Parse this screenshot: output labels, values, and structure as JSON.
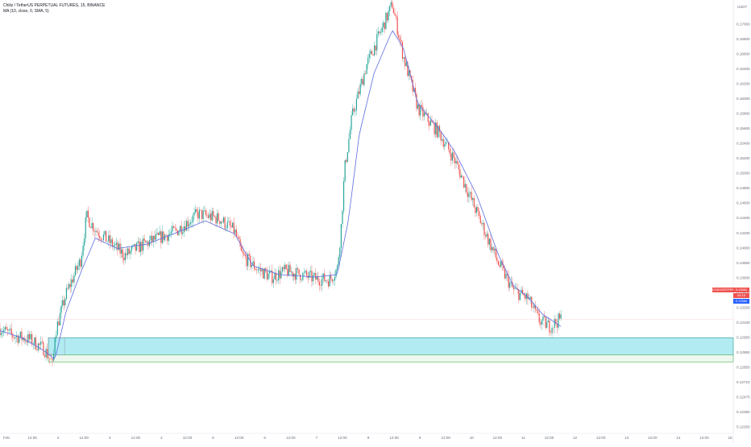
{
  "header": {
    "title": "Chiliz / TetherUS PERPETUAL FUTURES, 15, BINANCE",
    "indicator": "MA (10, close, 0, SMA, 5)"
  },
  "colors": {
    "up": "#26a69a",
    "down": "#ef5350",
    "ma": "#5b6be0",
    "zone_fill": "#b2ebf2",
    "zone_border": "#2a9d8f",
    "zone_lower_line": "#4caf50",
    "price_line": "#f7a6a6",
    "grid": "#f0f3fa"
  },
  "price_labels": {
    "symbol": "CHZUSDTPERP",
    "price": "0.13461",
    "countdown": "04:10",
    "ma_value": "0.13384"
  },
  "axis": {
    "unit": "USDT",
    "date_marker": "Feb"
  },
  "chart_data": {
    "type": "candlestick",
    "ylim": [
      0.1222,
      0.1715
    ],
    "y_ticks": [
      "0.17000",
      "0.16800",
      "0.16600",
      "0.16400",
      "0.16200",
      "0.16000",
      "0.15800",
      "0.15600",
      "0.15400",
      "0.15200",
      "0.15000",
      "0.14800",
      "0.14600",
      "0.14400",
      "0.14200",
      "0.14000",
      "0.13850",
      "0.13600",
      "0.13400",
      "0.13250",
      "0.13100",
      "0.12950",
      "0.12850",
      "0.12850",
      "0.12710",
      "0.12470",
      "0.12360",
      "0.12250"
    ],
    "x_ticks": [
      "Feb",
      "12:00",
      "2",
      "12:00",
      "3",
      "12:00",
      "4",
      "12:00",
      "5",
      "12:00",
      "6",
      "12:00",
      "7",
      "12:00",
      "8",
      "12:00",
      "9",
      "12:00",
      "10",
      "12:00",
      "11",
      "12:00",
      "12",
      "12:00",
      "13",
      "12:00",
      "14",
      "12:00",
      "15"
    ],
    "path_anchors": [
      [
        0,
        0.1336
      ],
      [
        0.015,
        0.1328
      ],
      [
        0.04,
        0.1323
      ],
      [
        0.06,
        0.1312
      ],
      [
        0.07,
        0.1298
      ],
      [
        0.072,
        0.129
      ],
      [
        0.075,
        0.133
      ],
      [
        0.09,
        0.1375
      ],
      [
        0.11,
        0.1415
      ],
      [
        0.118,
        0.1465
      ],
      [
        0.13,
        0.145
      ],
      [
        0.15,
        0.1435
      ],
      [
        0.17,
        0.142
      ],
      [
        0.19,
        0.143
      ],
      [
        0.21,
        0.1438
      ],
      [
        0.24,
        0.1448
      ],
      [
        0.27,
        0.1468
      ],
      [
        0.3,
        0.1462
      ],
      [
        0.32,
        0.1448
      ],
      [
        0.33,
        0.142
      ],
      [
        0.35,
        0.1405
      ],
      [
        0.37,
        0.1395
      ],
      [
        0.39,
        0.1402
      ],
      [
        0.41,
        0.1398
      ],
      [
        0.43,
        0.1393
      ],
      [
        0.45,
        0.1392
      ],
      [
        0.46,
        0.1405
      ],
      [
        0.465,
        0.145
      ],
      [
        0.47,
        0.152
      ],
      [
        0.48,
        0.158
      ],
      [
        0.5,
        0.164
      ],
      [
        0.52,
        0.168
      ],
      [
        0.535,
        0.171
      ],
      [
        0.55,
        0.165
      ],
      [
        0.57,
        0.159
      ],
      [
        0.6,
        0.156
      ],
      [
        0.62,
        0.153
      ],
      [
        0.65,
        0.147
      ],
      [
        0.68,
        0.141
      ],
      [
        0.7,
        0.138
      ],
      [
        0.72,
        0.137
      ],
      [
        0.735,
        0.1345
      ],
      [
        0.75,
        0.1338
      ],
      [
        0.765,
        0.1347
      ]
    ],
    "ma_anchors": [
      [
        0,
        0.1333
      ],
      [
        0.03,
        0.1325
      ],
      [
        0.06,
        0.131
      ],
      [
        0.075,
        0.13
      ],
      [
        0.09,
        0.1355
      ],
      [
        0.11,
        0.14
      ],
      [
        0.13,
        0.144
      ],
      [
        0.16,
        0.1428
      ],
      [
        0.2,
        0.1433
      ],
      [
        0.24,
        0.1446
      ],
      [
        0.28,
        0.146
      ],
      [
        0.32,
        0.1445
      ],
      [
        0.345,
        0.1408
      ],
      [
        0.38,
        0.1398
      ],
      [
        0.43,
        0.1395
      ],
      [
        0.46,
        0.1398
      ],
      [
        0.475,
        0.146
      ],
      [
        0.49,
        0.156
      ],
      [
        0.51,
        0.163
      ],
      [
        0.535,
        0.168
      ],
      [
        0.55,
        0.166
      ],
      [
        0.57,
        0.1595
      ],
      [
        0.6,
        0.1565
      ],
      [
        0.62,
        0.154
      ],
      [
        0.65,
        0.149
      ],
      [
        0.68,
        0.142
      ],
      [
        0.7,
        0.1385
      ],
      [
        0.72,
        0.1372
      ],
      [
        0.74,
        0.1352
      ],
      [
        0.765,
        0.1338
      ]
    ],
    "zone": {
      "y_top": 0.1325,
      "y_bottom": 0.1305,
      "x_start": 0.077,
      "lower_line": 0.1297
    },
    "current_price": 0.13461,
    "grid": false,
    "legend": "top-left"
  }
}
